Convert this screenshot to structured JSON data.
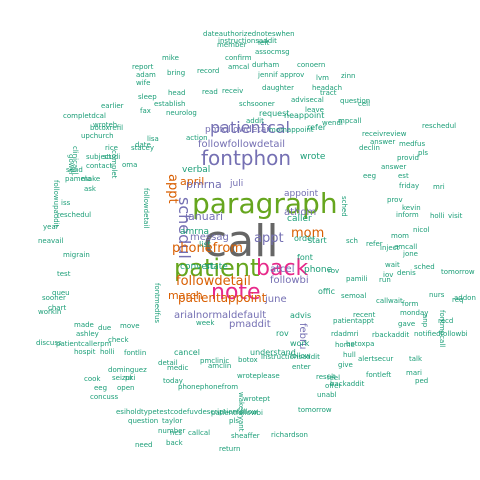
{
  "palette": {
    "teal": "#1b9e77",
    "orange": "#d95f02",
    "purple": "#7570b3",
    "magenta": "#e7298a",
    "green": "#66a61e",
    "gray": "#666666"
  },
  "words": [
    {
      "text": "call",
      "color": "gray",
      "size": 44
    },
    {
      "text": "paragraph",
      "color": "green",
      "size": 28
    },
    {
      "text": "patient",
      "color": "green",
      "size": 24
    },
    {
      "text": "back",
      "color": "magenta",
      "size": 22
    },
    {
      "text": "note",
      "color": "magenta",
      "size": 22
    },
    {
      "text": "fontphon",
      "color": "purple",
      "size": 20
    },
    {
      "text": "patientcal",
      "color": "purple",
      "size": 16
    },
    {
      "text": "schedul",
      "color": "purple",
      "size": 16
    },
    {
      "text": "phonefrom",
      "color": "orange",
      "size": 13
    },
    {
      "text": "followdetail",
      "color": "orange",
      "size": 13
    },
    {
      "text": "patientappoint",
      "color": "orange",
      "size": 12
    },
    {
      "text": "appt",
      "color": "orange",
      "size": 13
    },
    {
      "text": "mom",
      "color": "orange",
      "size": 13
    },
    {
      "text": "appt",
      "color": "purple",
      "size": 13
    },
    {
      "text": "april",
      "color": "orange",
      "size": 11
    },
    {
      "text": "march",
      "color": "orange",
      "size": 11
    },
    {
      "text": "januari",
      "color": "purple",
      "size": 11
    },
    {
      "text": "pmrna",
      "color": "purple",
      "size": 11
    },
    {
      "text": "messag",
      "color": "purple",
      "size": 10
    },
    {
      "text": "june",
      "color": "purple",
      "size": 10
    },
    {
      "text": "followbi",
      "color": "purple",
      "size": 10
    },
    {
      "text": "atcel",
      "color": "purple",
      "size": 10
    },
    {
      "text": "arialnormaldefault",
      "color": "purple",
      "size": 10
    },
    {
      "text": "pmaddit",
      "color": "purple",
      "size": 10
    },
    {
      "text": "followfollowdetail",
      "color": "purple",
      "size": 10
    },
    {
      "text": "pmfollowdetail",
      "color": "purple",
      "size": 9
    },
    {
      "text": "athom",
      "color": "purple",
      "size": 10
    },
    {
      "text": "febru",
      "color": "purple",
      "size": 10
    },
    {
      "text": "appoint",
      "color": "purple",
      "size": 9
    },
    {
      "text": "phone",
      "color": "teal",
      "size": 9
    },
    {
      "text": "amrna",
      "color": "teal",
      "size": 9
    },
    {
      "text": "verbal",
      "color": "teal",
      "size": 9
    },
    {
      "text": "juli",
      "color": "purple",
      "size": 9
    },
    {
      "text": "wrote",
      "color": "teal",
      "size": 9
    },
    {
      "text": "state",
      "color": "teal",
      "size": 9
    },
    {
      "text": "caller",
      "color": "teal",
      "size": 9
    },
    {
      "text": "convert",
      "color": "teal",
      "size": 9
    },
    {
      "text": "understand",
      "color": "teal",
      "size": 8
    },
    {
      "text": "refer",
      "color": "teal",
      "size": 8
    },
    {
      "text": "advis",
      "color": "teal",
      "size": 8
    },
    {
      "text": "order",
      "color": "teal",
      "size": 8
    },
    {
      "text": "start",
      "color": "teal",
      "size": 8
    },
    {
      "text": "offic",
      "color": "teal",
      "size": 8
    },
    {
      "text": "list",
      "color": "teal",
      "size": 8
    },
    {
      "text": "rov",
      "color": "teal",
      "size": 8
    },
    {
      "text": "work",
      "color": "teal",
      "size": 8
    },
    {
      "text": "font",
      "color": "teal",
      "size": 8
    },
    {
      "text": "request",
      "color": "teal",
      "size": 8
    },
    {
      "text": "neappoint",
      "color": "teal",
      "size": 8
    },
    {
      "text": "cancel",
      "color": "teal",
      "size": 8
    },
    {
      "text": "week",
      "color": "teal",
      "size": 7
    },
    {
      "text": "sched",
      "color": "teal",
      "size": 7
    },
    {
      "text": "bring",
      "color": "teal",
      "size": 7
    },
    {
      "text": "record",
      "color": "teal",
      "size": 7
    },
    {
      "text": "confirm",
      "color": "teal",
      "size": 7
    },
    {
      "text": "wife",
      "color": "teal",
      "size": 7
    },
    {
      "text": "head",
      "color": "teal",
      "size": 7
    },
    {
      "text": "sleep",
      "color": "teal",
      "size": 7
    },
    {
      "text": "establish",
      "color": "teal",
      "size": 7
    },
    {
      "text": "neurolog",
      "color": "teal",
      "size": 7
    },
    {
      "text": "action",
      "color": "teal",
      "size": 7
    },
    {
      "text": "assocmsg",
      "color": "teal",
      "size": 7
    },
    {
      "text": "member",
      "color": "teal",
      "size": 7
    },
    {
      "text": "durham",
      "color": "teal",
      "size": 7
    },
    {
      "text": "conoern",
      "color": "teal",
      "size": 7
    },
    {
      "text": "jennif",
      "color": "teal",
      "size": 7
    },
    {
      "text": "approv",
      "color": "teal",
      "size": 7
    },
    {
      "text": "daughter",
      "color": "teal",
      "size": 7
    },
    {
      "text": "advisecal",
      "color": "teal",
      "size": 7
    },
    {
      "text": "headach",
      "color": "teal",
      "size": 7
    },
    {
      "text": "question",
      "color": "teal",
      "size": 7
    },
    {
      "text": "dateauthorizednoteswhen",
      "color": "teal",
      "size": 7
    },
    {
      "text": "instructionsaddit",
      "color": "teal",
      "size": 7
    },
    {
      "text": "report",
      "color": "teal",
      "size": 7
    },
    {
      "text": "mike",
      "color": "teal",
      "size": 7
    },
    {
      "text": "adam",
      "color": "teal",
      "size": 7
    },
    {
      "text": "amcal",
      "color": "teal",
      "size": 7
    },
    {
      "text": "read",
      "color": "teal",
      "size": 7
    },
    {
      "text": "receiv",
      "color": "teal",
      "size": 7
    },
    {
      "text": "schsooner",
      "color": "teal",
      "size": 7
    },
    {
      "text": "addit",
      "color": "teal",
      "size": 7
    },
    {
      "text": "momappoint",
      "color": "teal",
      "size": 7
    },
    {
      "text": "receivreview",
      "color": "teal",
      "size": 7
    },
    {
      "text": "reschedul",
      "color": "teal",
      "size": 7
    },
    {
      "text": "wendi",
      "color": "teal",
      "size": 7
    },
    {
      "text": "answer",
      "color": "teal",
      "size": 7
    },
    {
      "text": "complet",
      "color": "teal",
      "size": 7
    },
    {
      "text": "completdcal",
      "color": "teal",
      "size": 7
    },
    {
      "text": "botoxrefil",
      "color": "teal",
      "size": 7
    },
    {
      "text": "earlier",
      "color": "teal",
      "size": 7
    },
    {
      "text": "wroteh",
      "color": "teal",
      "size": 7
    },
    {
      "text": "upchurch",
      "color": "teal",
      "size": 7
    },
    {
      "text": "clinicaal",
      "color": "teal",
      "size": 7
    },
    {
      "text": "subject",
      "color": "teal",
      "size": 7
    },
    {
      "text": "studi",
      "color": "teal",
      "size": 7
    },
    {
      "text": "pamela",
      "color": "teal",
      "size": 7
    },
    {
      "text": "make",
      "color": "teal",
      "size": 7
    },
    {
      "text": "ask",
      "color": "teal",
      "size": 7
    },
    {
      "text": "reschedul",
      "color": "teal",
      "size": 7
    },
    {
      "text": "year",
      "color": "teal",
      "size": 7
    },
    {
      "text": "neavail",
      "color": "teal",
      "size": 7
    },
    {
      "text": "migrain",
      "color": "teal",
      "size": 7
    },
    {
      "text": "test",
      "color": "teal",
      "size": 7
    },
    {
      "text": "queu",
      "color": "teal",
      "size": 7
    },
    {
      "text": "sooner",
      "color": "teal",
      "size": 7
    },
    {
      "text": "chart",
      "color": "teal",
      "size": 7
    },
    {
      "text": "workin",
      "color": "teal",
      "size": 7
    },
    {
      "text": "made",
      "color": "teal",
      "size": 7
    },
    {
      "text": "due",
      "color": "teal",
      "size": 7
    },
    {
      "text": "move",
      "color": "teal",
      "size": 7
    },
    {
      "text": "patientcallerpm",
      "color": "teal",
      "size": 7
    },
    {
      "text": "discuss",
      "color": "teal",
      "size": 7
    },
    {
      "text": "ashley",
      "color": "teal",
      "size": 7
    },
    {
      "text": "hospit",
      "color": "teal",
      "size": 7
    },
    {
      "text": "holli",
      "color": "teal",
      "size": 7
    },
    {
      "text": "fontlin",
      "color": "teal",
      "size": 7
    },
    {
      "text": "check",
      "color": "teal",
      "size": 7
    },
    {
      "text": "dominguez",
      "color": "teal",
      "size": 7
    },
    {
      "text": "cook",
      "color": "teal",
      "size": 7
    },
    {
      "text": "seizur",
      "color": "teal",
      "size": 7
    },
    {
      "text": "pki",
      "color": "teal",
      "size": 7
    },
    {
      "text": "eeg",
      "color": "teal",
      "size": 7
    },
    {
      "text": "open",
      "color": "teal",
      "size": 7
    },
    {
      "text": "concuss",
      "color": "teal",
      "size": 7
    },
    {
      "text": "today",
      "color": "teal",
      "size": 7
    },
    {
      "text": "medic",
      "color": "teal",
      "size": 7
    },
    {
      "text": "detail",
      "color": "teal",
      "size": 7
    },
    {
      "text": "amclin",
      "color": "teal",
      "size": 7
    },
    {
      "text": "pmclinic",
      "color": "teal",
      "size": 7
    },
    {
      "text": "botox",
      "color": "teal",
      "size": 7
    },
    {
      "text": "instructionsaddit",
      "color": "teal",
      "size": 7
    },
    {
      "text": "phonephonefrom",
      "color": "teal",
      "size": 7
    },
    {
      "text": "wroteplease",
      "color": "teal",
      "size": 7
    },
    {
      "text": "esiholdtypetestcodefuvdescriptionfollow",
      "color": "teal",
      "size": 7
    },
    {
      "text": "question",
      "color": "teal",
      "size": 7
    },
    {
      "text": "taylor",
      "color": "teal",
      "size": 7
    },
    {
      "text": "patientfollowbi",
      "color": "teal",
      "size": 7
    },
    {
      "text": "wrotept",
      "color": "teal",
      "size": 7
    },
    {
      "text": "pls",
      "color": "teal",
      "size": 7
    },
    {
      "text": "tomorrow",
      "color": "teal",
      "size": 7
    },
    {
      "text": "number",
      "color": "teal",
      "size": 7
    },
    {
      "text": "back",
      "color": "teal",
      "size": 7
    },
    {
      "text": "ncs",
      "color": "teal",
      "size": 7
    },
    {
      "text": "callcal",
      "color": "teal",
      "size": 7
    },
    {
      "text": "sheaffer",
      "color": "teal",
      "size": 7
    },
    {
      "text": "need",
      "color": "teal",
      "size": 7
    },
    {
      "text": "return",
      "color": "teal",
      "size": 7
    },
    {
      "text": "richardson",
      "color": "teal",
      "size": 7
    },
    {
      "text": "wakewyant",
      "color": "teal",
      "size": 7
    },
    {
      "text": "unabl",
      "color": "teal",
      "size": 7
    },
    {
      "text": "backaddit",
      "color": "teal",
      "size": 7
    },
    {
      "text": "result",
      "color": "teal",
      "size": 7
    },
    {
      "text": "offer",
      "color": "teal",
      "size": 7
    },
    {
      "text": "enter",
      "color": "teal",
      "size": 7
    },
    {
      "text": "follow",
      "color": "teal",
      "size": 7
    },
    {
      "text": "home",
      "color": "teal",
      "size": 7
    },
    {
      "text": "alertsecur",
      "color": "teal",
      "size": 7
    },
    {
      "text": "fontleft",
      "color": "teal",
      "size": 7
    },
    {
      "text": "mari",
      "color": "teal",
      "size": 7
    },
    {
      "text": "talk",
      "color": "teal",
      "size": 7
    },
    {
      "text": "feel",
      "color": "teal",
      "size": 7
    },
    {
      "text": "give",
      "color": "teal",
      "size": 7
    },
    {
      "text": "hull",
      "color": "teal",
      "size": 7
    },
    {
      "text": "ped",
      "color": "teal",
      "size": 7
    },
    {
      "text": "addon",
      "color": "teal",
      "size": 7
    },
    {
      "text": "recd",
      "color": "teal",
      "size": 7
    },
    {
      "text": "req",
      "color": "teal",
      "size": 7
    },
    {
      "text": "nurs",
      "color": "teal",
      "size": 7
    },
    {
      "text": "form",
      "color": "teal",
      "size": 7
    },
    {
      "text": "gave",
      "color": "teal",
      "size": 7
    },
    {
      "text": "monday",
      "color": "teal",
      "size": 7
    },
    {
      "text": "tomorrow",
      "color": "teal",
      "size": 7
    },
    {
      "text": "callwait",
      "color": "teal",
      "size": 7
    },
    {
      "text": "inject",
      "color": "teal",
      "size": 7
    },
    {
      "text": "iov",
      "color": "teal",
      "size": 7
    },
    {
      "text": "refer",
      "color": "teal",
      "size": 7
    },
    {
      "text": "inform",
      "color": "teal",
      "size": 7
    },
    {
      "text": "friday",
      "color": "teal",
      "size": 7
    },
    {
      "text": "kevin",
      "color": "teal",
      "size": 7
    },
    {
      "text": "holli",
      "color": "teal",
      "size": 7
    },
    {
      "text": "visit",
      "color": "teal",
      "size": 7
    },
    {
      "text": "est",
      "color": "teal",
      "size": 7
    },
    {
      "text": "provid",
      "color": "teal",
      "size": 7
    },
    {
      "text": "eeg",
      "color": "teal",
      "size": 7
    },
    {
      "text": "answer",
      "color": "teal",
      "size": 7
    },
    {
      "text": "declin",
      "color": "teal",
      "size": 7
    },
    {
      "text": "medfus",
      "color": "teal",
      "size": 7
    },
    {
      "text": "pls",
      "color": "teal",
      "size": 7
    },
    {
      "text": "cell",
      "color": "teal",
      "size": 7
    },
    {
      "text": "zinn",
      "color": "teal",
      "size": 7
    },
    {
      "text": "tract",
      "color": "teal",
      "size": 7
    },
    {
      "text": "lvm",
      "color": "teal",
      "size": 7
    },
    {
      "text": "left",
      "color": "teal",
      "size": 7
    },
    {
      "text": "leave",
      "color": "teal",
      "size": 7
    },
    {
      "text": "mpcall",
      "color": "teal",
      "size": 7
    },
    {
      "text": "amcall",
      "color": "teal",
      "size": 7
    },
    {
      "text": "nicol",
      "color": "teal",
      "size": 7
    },
    {
      "text": "denis",
      "color": "teal",
      "size": 7
    },
    {
      "text": "jone",
      "color": "teal",
      "size": 7
    },
    {
      "text": "wait",
      "color": "teal",
      "size": 7
    },
    {
      "text": "run",
      "color": "teal",
      "size": 7
    },
    {
      "text": "sched",
      "color": "teal",
      "size": 7
    },
    {
      "text": "mom",
      "color": "teal",
      "size": 7
    },
    {
      "text": "prov",
      "color": "teal",
      "size": 7
    },
    {
      "text": "sch",
      "color": "teal",
      "size": 7
    },
    {
      "text": "rov",
      "color": "teal",
      "size": 7
    },
    {
      "text": "rdadmri",
      "color": "teal",
      "size": 7
    },
    {
      "text": "pamili",
      "color": "teal",
      "size": 7
    },
    {
      "text": "semoal",
      "color": "teal",
      "size": 7
    },
    {
      "text": "recent",
      "color": "teal",
      "size": 7
    },
    {
      "text": "rbackaddit",
      "color": "teal",
      "size": 7
    },
    {
      "text": "patientappt",
      "color": "teal",
      "size": 7
    },
    {
      "text": "botoxpa",
      "color": "teal",
      "size": 7
    },
    {
      "text": "notifiedfollowbi",
      "color": "teal",
      "size": 7
    },
    {
      "text": "followupaddit",
      "color": "teal",
      "size": 7
    },
    {
      "text": "followdetail",
      "color": "teal",
      "size": 7
    },
    {
      "text": "fontmedfus",
      "color": "teal",
      "size": 7
    },
    {
      "text": "fontmpcall",
      "color": "teal",
      "size": 7
    },
    {
      "text": "anp",
      "color": "teal",
      "size": 7
    },
    {
      "text": "mri",
      "color": "teal",
      "size": 7
    },
    {
      "text": "lisa",
      "color": "teal",
      "size": 7
    },
    {
      "text": "date",
      "color": "teal",
      "size": 7
    },
    {
      "text": "rice",
      "color": "teal",
      "size": 7
    },
    {
      "text": "stacey",
      "color": "teal",
      "size": 7
    },
    {
      "text": "gower",
      "color": "teal",
      "size": 7
    },
    {
      "text": "send",
      "color": "teal",
      "size": 7
    },
    {
      "text": "contact",
      "color": "teal",
      "size": 7
    },
    {
      "text": "oma",
      "color": "teal",
      "size": 7
    },
    {
      "text": "iss",
      "color": "teal",
      "size": 7
    },
    {
      "text": "fax",
      "color": "teal",
      "size": 7
    }
  ]
}
